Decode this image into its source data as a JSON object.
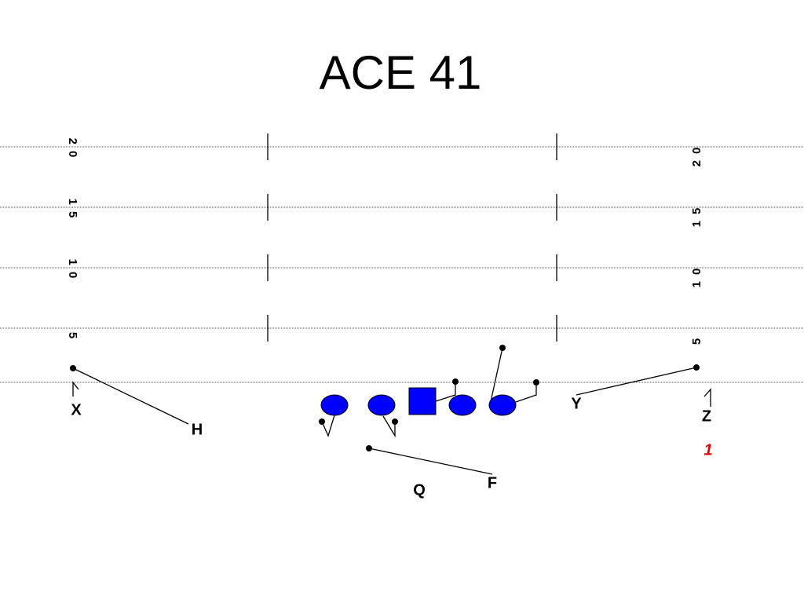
{
  "title": "ACE 41",
  "yard_numbers": {
    "left": [
      "20",
      "15",
      "10",
      "5"
    ],
    "right": [
      "20",
      "15",
      "10",
      "5"
    ]
  },
  "players": {
    "x": "X",
    "h": "H",
    "y": "Y",
    "z": "Z",
    "q": "Q",
    "f": "F"
  },
  "play_number": "1"
}
